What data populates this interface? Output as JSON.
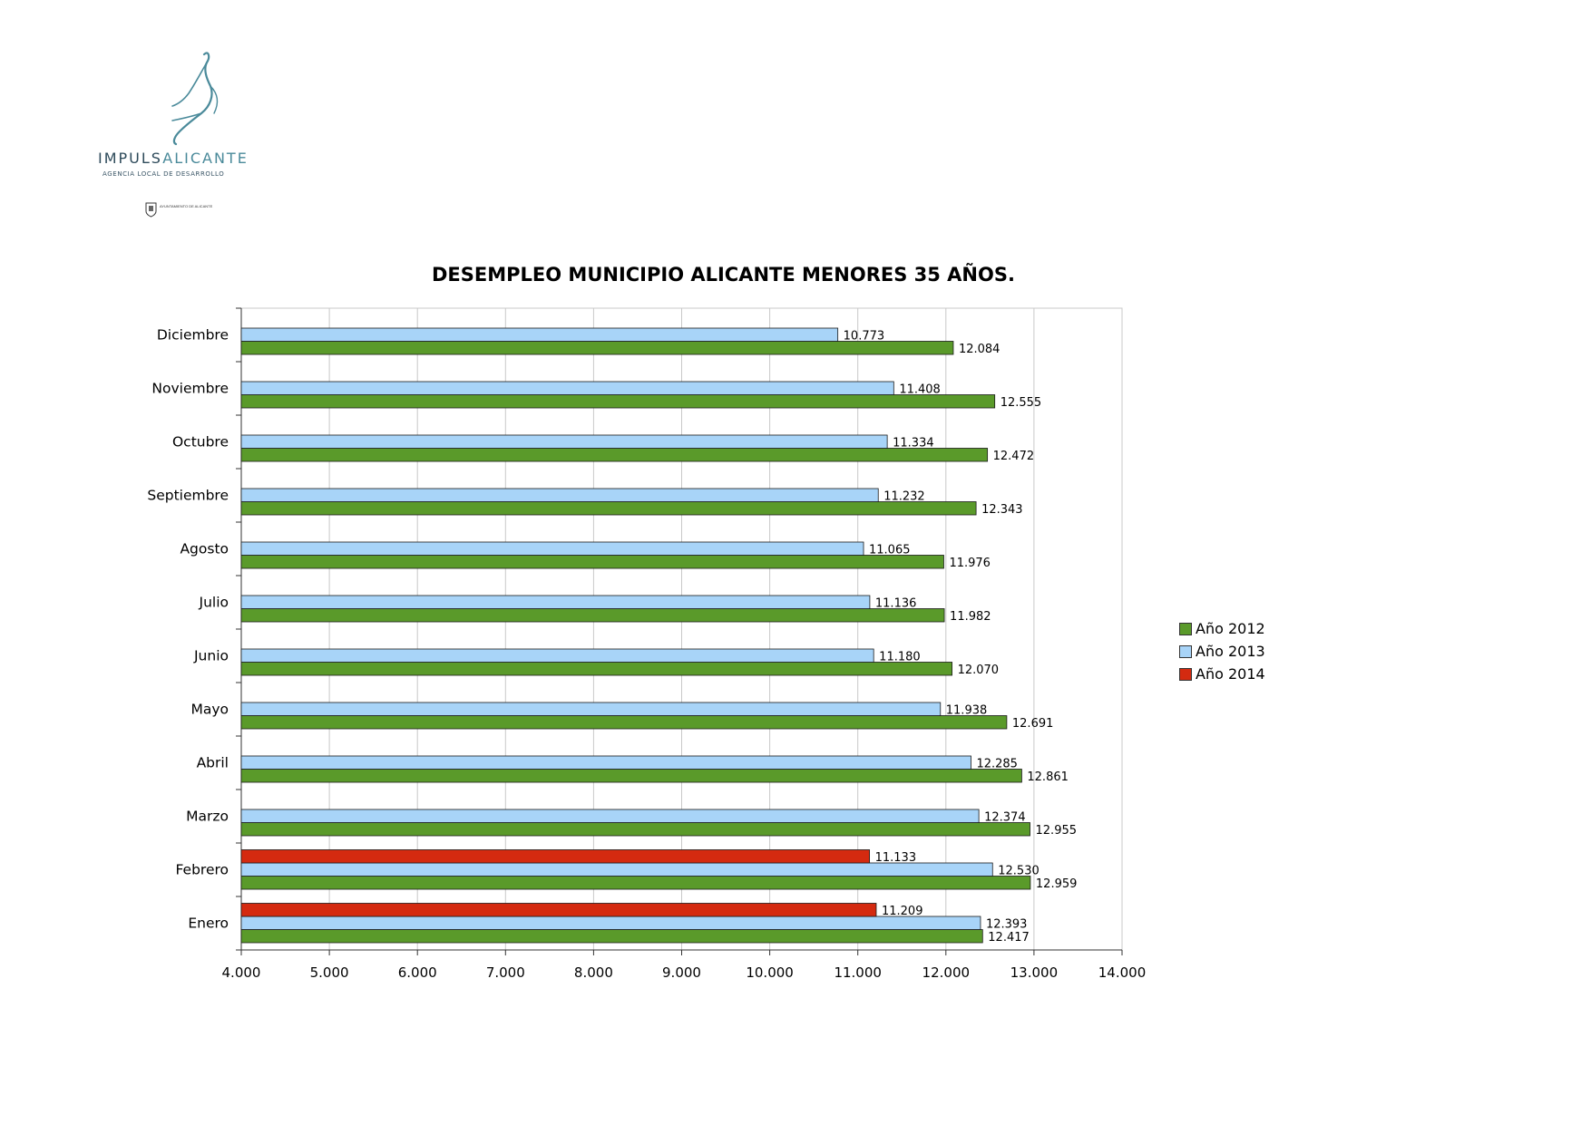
{
  "branding": {
    "org_name_part1": "IMPULS",
    "org_name_part2": "ALICANTE",
    "org_subtitle": "AGENCIA LOCAL DE DESARROLLO",
    "council_text": "AYUNTAMIENTO DE ALICANTE"
  },
  "chart_data": {
    "type": "bar",
    "orientation": "horizontal",
    "title": "DESEMPLEO MUNICIPIO ALICANTE MENORES 35 AÑOS.",
    "xlabel": "",
    "ylabel": "",
    "xlim": [
      4000,
      14000
    ],
    "x_ticks": [
      4000,
      5000,
      6000,
      7000,
      8000,
      9000,
      10000,
      11000,
      12000,
      13000,
      14000
    ],
    "x_tick_labels": [
      "4.000",
      "5.000",
      "6.000",
      "7.000",
      "8.000",
      "9.000",
      "10.000",
      "11.000",
      "12.000",
      "13.000",
      "14.000"
    ],
    "grid": "vertical",
    "legend_position": "right",
    "categories": [
      "Diciembre",
      "Noviembre",
      "Octubre",
      "Septiembre",
      "Agosto",
      "Julio",
      "Junio",
      "Mayo",
      "Abril",
      "Marzo",
      "Febrero",
      "Enero"
    ],
    "series": [
      {
        "name": "Año 2012",
        "color": "#5a9a2a",
        "values": [
          12084,
          12555,
          12472,
          12343,
          11976,
          11982,
          12070,
          12691,
          12861,
          12955,
          12959,
          12417
        ],
        "labels": [
          "12.084",
          "12.555",
          "12.472",
          "12.343",
          "11.976",
          "11.982",
          "12.070",
          "12.691",
          "12.861",
          "12.955",
          "12.959",
          "12.417"
        ]
      },
      {
        "name": "Año 2013",
        "color": "#a8d4f8",
        "values": [
          10773,
          11408,
          11334,
          11232,
          11065,
          11136,
          11180,
          11938,
          12285,
          12374,
          12530,
          12393
        ],
        "labels": [
          "10.773",
          "11.408",
          "11.334",
          "11.232",
          "11.065",
          "11.136",
          "11.180",
          "11.938",
          "12.285",
          "12.374",
          "12.530",
          "12.393"
        ]
      },
      {
        "name": "Año 2014",
        "color": "#d42a10",
        "values": [
          null,
          null,
          null,
          null,
          null,
          null,
          null,
          null,
          null,
          null,
          11133,
          11209
        ],
        "labels": [
          null,
          null,
          null,
          null,
          null,
          null,
          null,
          null,
          null,
          null,
          "11.133",
          "11.209"
        ]
      }
    ]
  }
}
